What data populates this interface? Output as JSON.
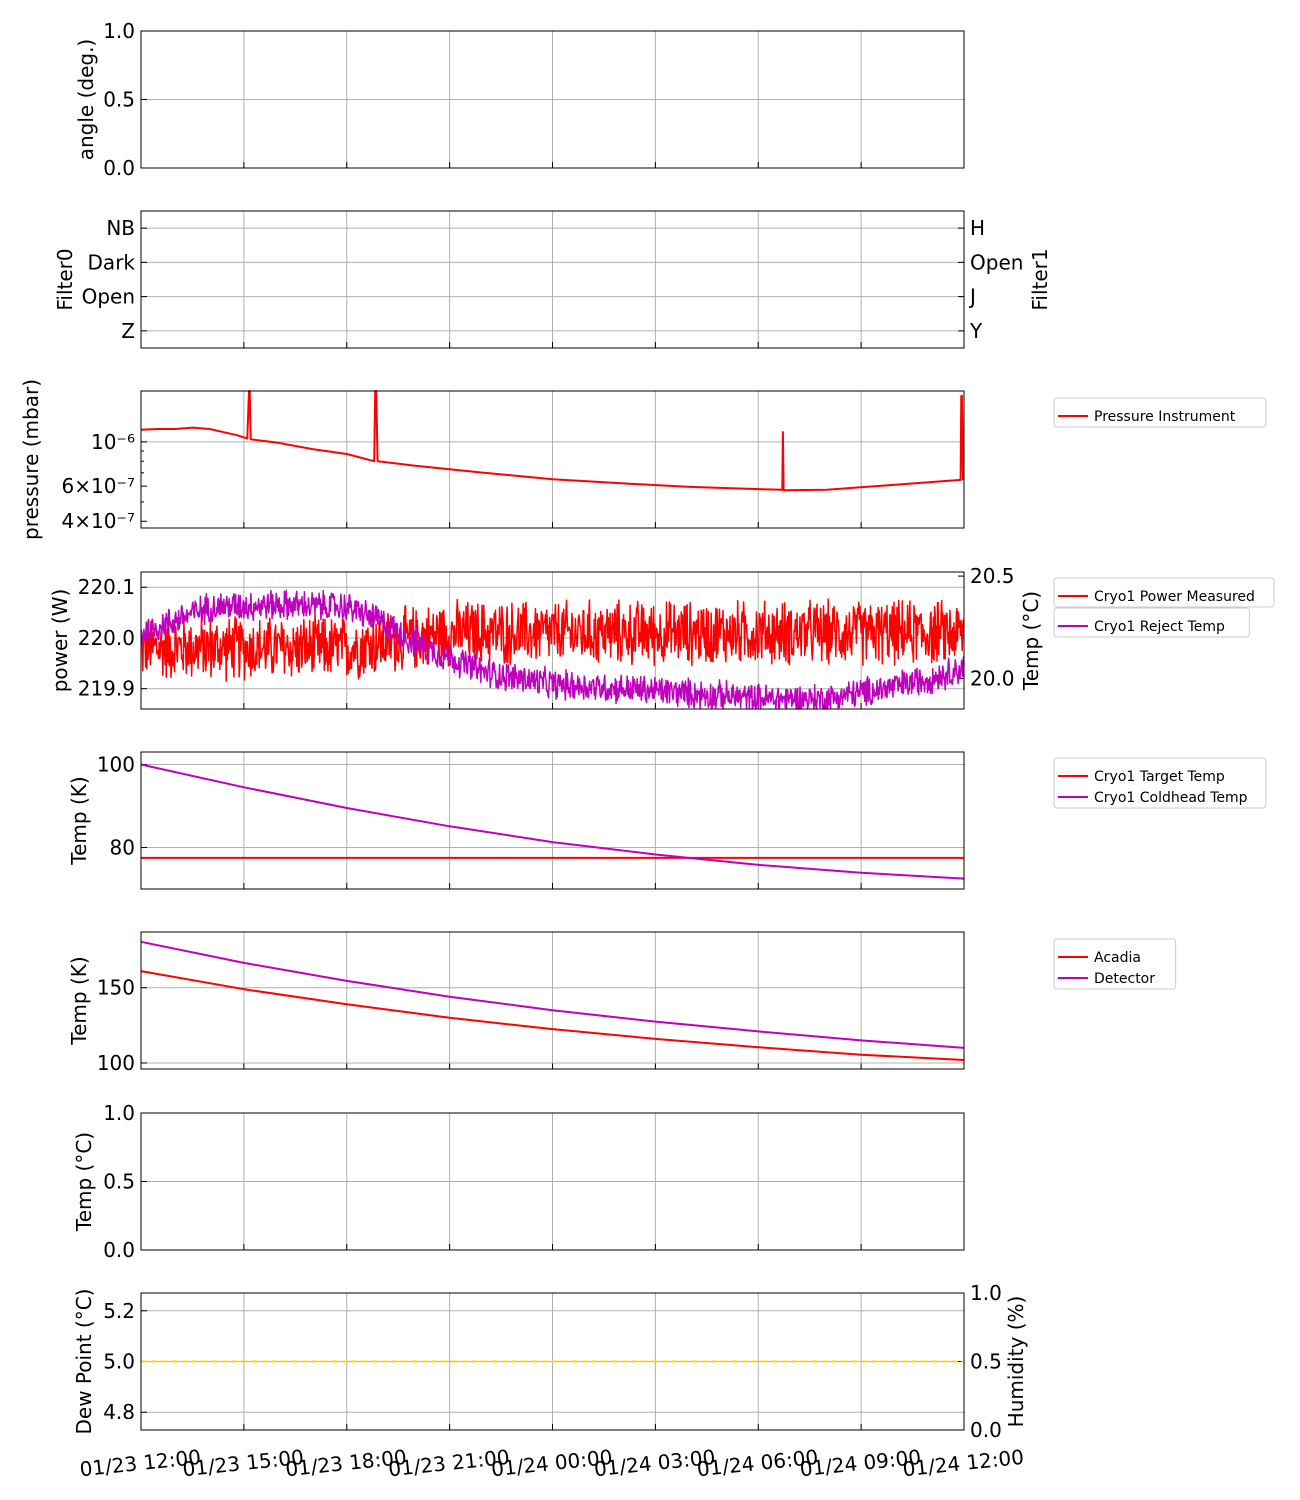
{
  "colors": {
    "red": "#ff0000",
    "magenta": "#bf00bf",
    "gold": "#ffd700",
    "grid": "#b0b0b0",
    "axis": "#000000"
  },
  "x_axis": {
    "start": "01/23 12:00",
    "end": "01/24 12:00",
    "span_hours": 24,
    "tick_hours": [
      0,
      3,
      6,
      9,
      12,
      15,
      18,
      21,
      24
    ],
    "tick_labels": [
      "01/23 12:00",
      "01/23 15:00",
      "01/23 18:00",
      "01/23 21:00",
      "01/24 00:00",
      "01/24 03:00",
      "01/24 06:00",
      "01/24 09:00",
      "01/24 12:00"
    ]
  },
  "chart_data": [
    {
      "id": "angle",
      "type": "line",
      "ylabel": "angle (deg.)",
      "ylim": [
        0,
        1
      ],
      "yticks": [
        0,
        0.5,
        1
      ],
      "ytick_labels": [
        "0.0",
        "0.5",
        "1.0"
      ],
      "series": []
    },
    {
      "id": "filters",
      "type": "line",
      "ylabel_left": "Filter0",
      "ylabel_right": "Filter1",
      "ytick_labels_left": [
        "Z",
        "Open",
        "Dark",
        "NB"
      ],
      "ytick_labels_right": [
        "Y",
        "J",
        "Open",
        "H"
      ],
      "series": []
    },
    {
      "id": "pressure",
      "type": "line",
      "yscale": "log",
      "ylabel": "pressure (mbar)",
      "ylim": [
        3.7e-07,
        1.8e-06
      ],
      "ytick_values": [
        4e-07,
        6e-07,
        1e-06
      ],
      "ytick_labels": [
        "4×10⁻⁷",
        "6×10⁻⁷",
        "10⁻⁶"
      ],
      "series": [
        {
          "name": "Pressure Instrument",
          "color": "#ff0000",
          "x_hours": [
            0,
            0.5,
            1.0,
            1.5,
            2.0,
            2.3,
            2.8,
            3.1,
            3.15,
            3.17,
            3.2,
            4.0,
            5.0,
            6.0,
            6.8,
            6.83,
            6.86,
            6.9,
            8.0,
            10.0,
            12.0,
            14.0,
            16.0,
            18.0,
            18.7,
            18.72,
            18.74,
            18.78,
            20.0,
            22.0,
            23.9,
            23.92,
            23.94,
            23.97,
            24.0
          ],
          "y": [
            1.15e-06,
            1.16e-06,
            1.16e-06,
            1.18e-06,
            1.16e-06,
            1.13e-06,
            1.08e-06,
            1.04e-06,
            1.8e-06,
            1.8e-06,
            1.03e-06,
            9.9e-07,
            9.2e-07,
            8.7e-07,
            8e-07,
            1.8e-06,
            1.8e-06,
            8e-07,
            7.6e-07,
            7e-07,
            6.5e-07,
            6.2e-07,
            5.95e-07,
            5.8e-07,
            5.75e-07,
            1.12e-06,
            5.72e-07,
            5.72e-07,
            5.75e-07,
            6.1e-07,
            6.45e-07,
            1.7e-06,
            1.7e-06,
            6.5e-07,
            6.5e-07
          ]
        }
      ]
    },
    {
      "id": "cryo-power",
      "type": "line",
      "ylabel_left": "power (W)",
      "ylabel_right": "Temp (°C)",
      "ylim_left": [
        219.86,
        220.13
      ],
      "yticks_left": [
        219.9,
        220.0,
        220.1
      ],
      "ytick_labels_left": [
        "219.9",
        "220.0",
        "220.1"
      ],
      "ylim_right": [
        19.85,
        20.52
      ],
      "yticks_right": [
        20.0,
        20.5
      ],
      "ytick_labels_right": [
        "20.0",
        "20.5"
      ],
      "series": [
        {
          "name": "Cryo1 Power Measured",
          "color": "#ff0000",
          "axis": "left",
          "x_hours": [
            0,
            3,
            6,
            7,
            8,
            9,
            12,
            18,
            24
          ],
          "center": [
            219.98,
            219.98,
            219.98,
            219.99,
            220.0,
            220.01,
            220.01,
            220.01,
            220.01
          ],
          "noise_amplitude": 0.06
        },
        {
          "name": "Cryo1 Reject Temp",
          "color": "#bf00bf",
          "axis": "right",
          "x_hours": [
            0,
            2,
            4,
            6,
            7,
            8,
            9,
            10,
            12,
            15,
            18,
            20,
            21,
            22,
            23,
            24
          ],
          "center": [
            20.22,
            20.35,
            20.36,
            20.35,
            20.28,
            20.17,
            20.1,
            20.03,
            19.97,
            19.94,
            19.9,
            19.9,
            19.93,
            19.96,
            20.0,
            20.05
          ],
          "noise_amplitude": 0.07
        }
      ]
    },
    {
      "id": "cryo-temps",
      "type": "line",
      "ylabel": "Temp (K)",
      "ylim": [
        70,
        103
      ],
      "yticks": [
        80,
        100
      ],
      "ytick_labels": [
        "80",
        "100"
      ],
      "series": [
        {
          "name": "Cryo1 Target Temp",
          "color": "#ff0000",
          "x_hours": [
            0,
            24
          ],
          "y": [
            77.5,
            77.5
          ]
        },
        {
          "name": "Cryo1 Coldhead Temp",
          "color": "#bf00bf",
          "x_hours": [
            0,
            3,
            6,
            9,
            12,
            15,
            18,
            21,
            24
          ],
          "y": [
            100,
            94.5,
            89.5,
            85.1,
            81.3,
            78.3,
            75.8,
            73.9,
            72.5
          ]
        }
      ]
    },
    {
      "id": "acadia-detector",
      "type": "line",
      "ylabel": "Temp (K)",
      "ylim": [
        96,
        187
      ],
      "yticks": [
        100,
        150
      ],
      "ytick_labels": [
        "100",
        "150"
      ],
      "series": [
        {
          "name": "Acadia",
          "color": "#ff0000",
          "x_hours": [
            0,
            3,
            6,
            9,
            12,
            15,
            18,
            21,
            24
          ],
          "y": [
            161,
            149,
            139,
            130,
            122.5,
            116,
            110.5,
            105.5,
            102
          ]
        },
        {
          "name": "Detector",
          "color": "#bf00bf",
          "x_hours": [
            0,
            3,
            6,
            9,
            12,
            15,
            18,
            21,
            24
          ],
          "y": [
            180.5,
            166.5,
            154.5,
            144,
            135,
            127.5,
            121,
            115,
            110
          ]
        }
      ]
    },
    {
      "id": "temp-c",
      "type": "line",
      "ylabel": "Temp (°C)",
      "ylim": [
        0,
        1
      ],
      "yticks": [
        0,
        0.5,
        1
      ],
      "ytick_labels": [
        "0.0",
        "0.5",
        "1.0"
      ],
      "series": []
    },
    {
      "id": "dewpoint",
      "type": "line",
      "ylabel_left": "Dew Point (°C)",
      "ylabel_right": "Humidity (%)",
      "ylim_left": [
        4.73,
        5.27
      ],
      "yticks_left": [
        4.8,
        5.0,
        5.2
      ],
      "ytick_labels_left": [
        "4.8",
        "5.0",
        "5.2"
      ],
      "ylim_right": [
        0,
        1
      ],
      "yticks_right": [
        0,
        0.5,
        1
      ],
      "ytick_labels_right": [
        "0.0",
        "0.5",
        "1.0"
      ],
      "series": [
        {
          "name": "Dew Point",
          "color": "#ffd700",
          "style": "dashed",
          "x_hours": [
            0,
            24
          ],
          "y": [
            5.0,
            5.0
          ]
        }
      ]
    }
  ]
}
